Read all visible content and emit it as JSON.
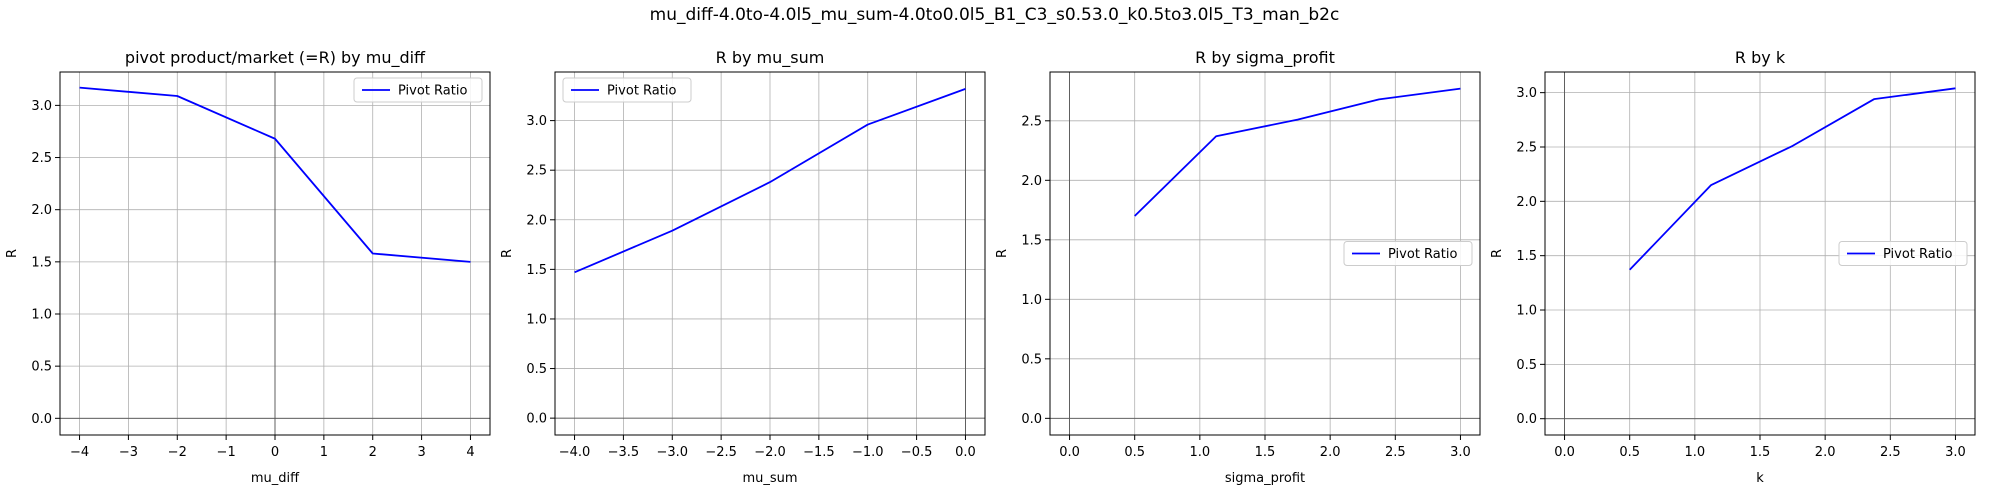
{
  "figure": {
    "suptitle": "mu_diff-4.0to-4.0l5_mu_sum-4.0to0.0l5_B1_C3_s0.53.0_k0.5to3.0l5_T3_man_b2c"
  },
  "colors": {
    "line": "#0000ff",
    "grid": "#b0b0b0",
    "zero_line": "#555555",
    "legend_border": "#cccccc"
  },
  "chart_data": [
    {
      "type": "line",
      "title": "pivot product/market (=R) by mu_diff",
      "xlabel": "mu_diff",
      "ylabel": "R",
      "x": [
        -4,
        -2,
        0,
        2,
        4
      ],
      "series": [
        {
          "name": "Pivot Ratio",
          "values": [
            3.17,
            3.09,
            2.68,
            1.58,
            1.5
          ]
        }
      ],
      "xlim": [
        -4.4,
        4.4
      ],
      "ylim": [
        -0.16,
        3.32
      ],
      "xticks": [
        -4,
        -3,
        -2,
        -1,
        0,
        1,
        2,
        3,
        4
      ],
      "xtick_labels": [
        "−4",
        "−3",
        "−2",
        "−1",
        "0",
        "1",
        "2",
        "3",
        "4"
      ],
      "yticks": [
        0,
        0.5,
        1,
        1.5,
        2,
        2.5,
        3
      ],
      "ytick_labels": [
        "0.0",
        "0.5",
        "1.0",
        "1.5",
        "2.0",
        "2.5",
        "3.0"
      ],
      "grid": true,
      "zero_lines": {
        "x": true,
        "y": true
      },
      "legend": "upper right"
    },
    {
      "type": "line",
      "title": "R by mu_sum",
      "xlabel": "mu_sum",
      "ylabel": "R",
      "x": [
        -4,
        -3,
        -2,
        -1,
        0
      ],
      "series": [
        {
          "name": "Pivot Ratio",
          "values": [
            1.47,
            1.89,
            2.38,
            2.96,
            3.32
          ]
        }
      ],
      "xlim": [
        -4.2,
        0.2
      ],
      "ylim": [
        -0.17,
        3.49
      ],
      "xticks": [
        -4,
        -3.5,
        -3,
        -2.5,
        -2,
        -1.5,
        -1,
        -0.5,
        0
      ],
      "xtick_labels": [
        "−4.0",
        "−3.5",
        "−3.0",
        "−2.5",
        "−2.0",
        "−1.5",
        "−1.0",
        "−0.5",
        "0.0"
      ],
      "yticks": [
        0,
        0.5,
        1,
        1.5,
        2,
        2.5,
        3
      ],
      "ytick_labels": [
        "0.0",
        "0.5",
        "1.0",
        "1.5",
        "2.0",
        "2.5",
        "3.0"
      ],
      "grid": true,
      "zero_lines": {
        "x": true,
        "y": true
      },
      "legend": "upper left"
    },
    {
      "type": "line",
      "title": "R by sigma_profit",
      "xlabel": "sigma_profit",
      "ylabel": "R",
      "x": [
        0.5,
        1.125,
        1.75,
        2.375,
        3.0
      ],
      "series": [
        {
          "name": "Pivot Ratio",
          "values": [
            1.7,
            2.37,
            2.51,
            2.68,
            2.77
          ]
        }
      ],
      "xlim": [
        -0.15,
        3.15
      ],
      "ylim": [
        -0.14,
        2.91
      ],
      "xticks": [
        0,
        0.5,
        1,
        1.5,
        2,
        2.5,
        3
      ],
      "xtick_labels": [
        "0.0",
        "0.5",
        "1.0",
        "1.5",
        "2.0",
        "2.5",
        "3.0"
      ],
      "yticks": [
        0,
        0.5,
        1,
        1.5,
        2,
        2.5
      ],
      "ytick_labels": [
        "0.0",
        "0.5",
        "1.0",
        "1.5",
        "2.0",
        "2.5"
      ],
      "grid": true,
      "zero_lines": {
        "x": true,
        "y": true
      },
      "legend": "center right"
    },
    {
      "type": "line",
      "title": "R by k",
      "xlabel": "k",
      "ylabel": "R",
      "x": [
        0.5,
        1.125,
        1.75,
        2.375,
        3.0
      ],
      "series": [
        {
          "name": "Pivot Ratio",
          "values": [
            1.37,
            2.15,
            2.51,
            2.94,
            3.04
          ]
        }
      ],
      "xlim": [
        -0.15,
        3.15
      ],
      "ylim": [
        -0.15,
        3.19
      ],
      "xticks": [
        0,
        0.5,
        1,
        1.5,
        2,
        2.5,
        3
      ],
      "xtick_labels": [
        "0.0",
        "0.5",
        "1.0",
        "1.5",
        "2.0",
        "2.5",
        "3.0"
      ],
      "yticks": [
        0,
        0.5,
        1,
        1.5,
        2,
        2.5,
        3
      ],
      "ytick_labels": [
        "0.0",
        "0.5",
        "1.0",
        "1.5",
        "2.0",
        "2.5",
        "3.0"
      ],
      "grid": true,
      "zero_lines": {
        "x": true,
        "y": true
      },
      "legend": "center right"
    }
  ]
}
